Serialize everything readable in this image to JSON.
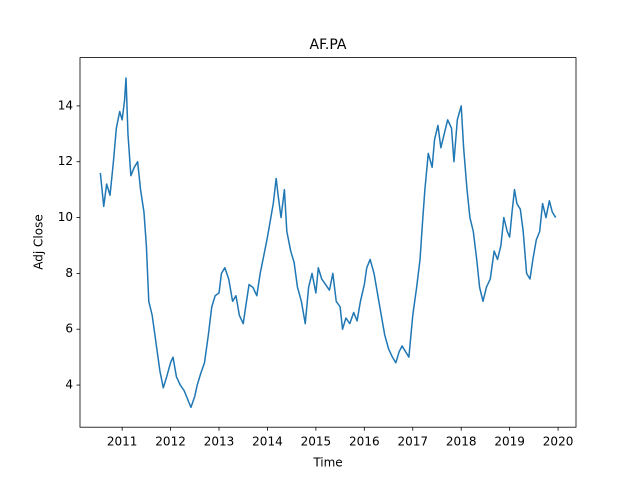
{
  "chart_data": {
    "type": "line",
    "title": "AF.PA",
    "x_label": "Time",
    "y_label": "Adj Close",
    "x": [
      2010.55,
      2010.62,
      2010.68,
      2010.75,
      2010.82,
      2010.88,
      2010.95,
      2011.0,
      2011.05,
      2011.08,
      2011.12,
      2011.18,
      2011.25,
      2011.32,
      2011.38,
      2011.45,
      2011.5,
      2011.55,
      2011.62,
      2011.7,
      2011.78,
      2011.85,
      2011.92,
      2012.0,
      2012.05,
      2012.12,
      2012.2,
      2012.28,
      2012.35,
      2012.42,
      2012.5,
      2012.55,
      2012.62,
      2012.7,
      2012.78,
      2012.85,
      2012.92,
      2013.0,
      2013.05,
      2013.12,
      2013.2,
      2013.28,
      2013.35,
      2013.42,
      2013.5,
      2013.55,
      2013.62,
      2013.7,
      2013.78,
      2013.85,
      2013.92,
      2014.0,
      2014.05,
      2014.12,
      2014.18,
      2014.22,
      2014.28,
      2014.35,
      2014.4,
      2014.48,
      2014.55,
      2014.62,
      2014.7,
      2014.78,
      2014.85,
      2014.92,
      2015.0,
      2015.05,
      2015.12,
      2015.2,
      2015.28,
      2015.35,
      2015.42,
      2015.5,
      2015.55,
      2015.62,
      2015.7,
      2015.78,
      2015.85,
      2015.92,
      2016.0,
      2016.05,
      2016.12,
      2016.2,
      2016.28,
      2016.35,
      2016.42,
      2016.5,
      2016.58,
      2016.65,
      2016.72,
      2016.78,
      2016.85,
      2016.92,
      2017.0,
      2017.08,
      2017.15,
      2017.2,
      2017.25,
      2017.32,
      2017.4,
      2017.45,
      2017.52,
      2017.58,
      2017.65,
      2017.72,
      2017.8,
      2017.85,
      2017.92,
      2018.0,
      2018.05,
      2018.12,
      2018.18,
      2018.25,
      2018.32,
      2018.38,
      2018.45,
      2018.52,
      2018.6,
      2018.68,
      2018.75,
      2018.82,
      2018.88,
      2018.95,
      2019.0,
      2019.05,
      2019.1,
      2019.15,
      2019.22,
      2019.28,
      2019.35,
      2019.42,
      2019.48,
      2019.55,
      2019.62,
      2019.68,
      2019.75,
      2019.82,
      2019.88,
      2019.95
    ],
    "series": [
      {
        "name": "AF.PA",
        "color": "#1f77b4",
        "values": [
          11.6,
          10.4,
          11.2,
          10.8,
          12.0,
          13.2,
          13.8,
          13.5,
          14.2,
          15.0,
          13.0,
          11.5,
          11.8,
          12.0,
          11.0,
          10.2,
          9.0,
          7.0,
          6.5,
          5.5,
          4.5,
          3.9,
          4.3,
          4.8,
          5.0,
          4.3,
          4.0,
          3.8,
          3.5,
          3.2,
          3.6,
          4.0,
          4.4,
          4.8,
          5.8,
          6.8,
          7.2,
          7.3,
          8.0,
          8.2,
          7.8,
          7.0,
          7.2,
          6.5,
          6.2,
          6.8,
          7.6,
          7.5,
          7.2,
          8.0,
          8.6,
          9.3,
          9.8,
          10.5,
          11.4,
          10.8,
          10.0,
          11.0,
          9.5,
          8.8,
          8.4,
          7.5,
          7.0,
          6.2,
          7.5,
          8.0,
          7.3,
          8.2,
          7.8,
          7.6,
          7.4,
          8.0,
          7.0,
          6.8,
          6.0,
          6.4,
          6.2,
          6.6,
          6.3,
          7.0,
          7.6,
          8.2,
          8.5,
          8.0,
          7.2,
          6.5,
          5.8,
          5.3,
          5.0,
          4.8,
          5.2,
          5.4,
          5.2,
          5.0,
          6.5,
          7.5,
          8.5,
          9.8,
          11.0,
          12.3,
          11.8,
          12.8,
          13.3,
          12.5,
          13.0,
          13.5,
          13.2,
          12.0,
          13.5,
          14.0,
          12.5,
          11.0,
          10.0,
          9.5,
          8.5,
          7.5,
          7.0,
          7.5,
          7.8,
          8.8,
          8.5,
          9.0,
          10.0,
          9.5,
          9.3,
          10.2,
          11.0,
          10.5,
          10.3,
          9.5,
          8.0,
          7.8,
          8.5,
          9.2,
          9.5,
          10.5,
          10.0,
          10.6,
          10.2,
          10.0
        ]
      }
    ],
    "xlim": [
      2010.13,
      2020.37
    ],
    "xticks": [
      2011,
      2012,
      2013,
      2014,
      2015,
      2016,
      2017,
      2018,
      2019,
      2020
    ],
    "ylim": [
      2.49,
      15.73
    ],
    "yticks": [
      4,
      6,
      8,
      10,
      12,
      14
    ],
    "grid": false
  }
}
